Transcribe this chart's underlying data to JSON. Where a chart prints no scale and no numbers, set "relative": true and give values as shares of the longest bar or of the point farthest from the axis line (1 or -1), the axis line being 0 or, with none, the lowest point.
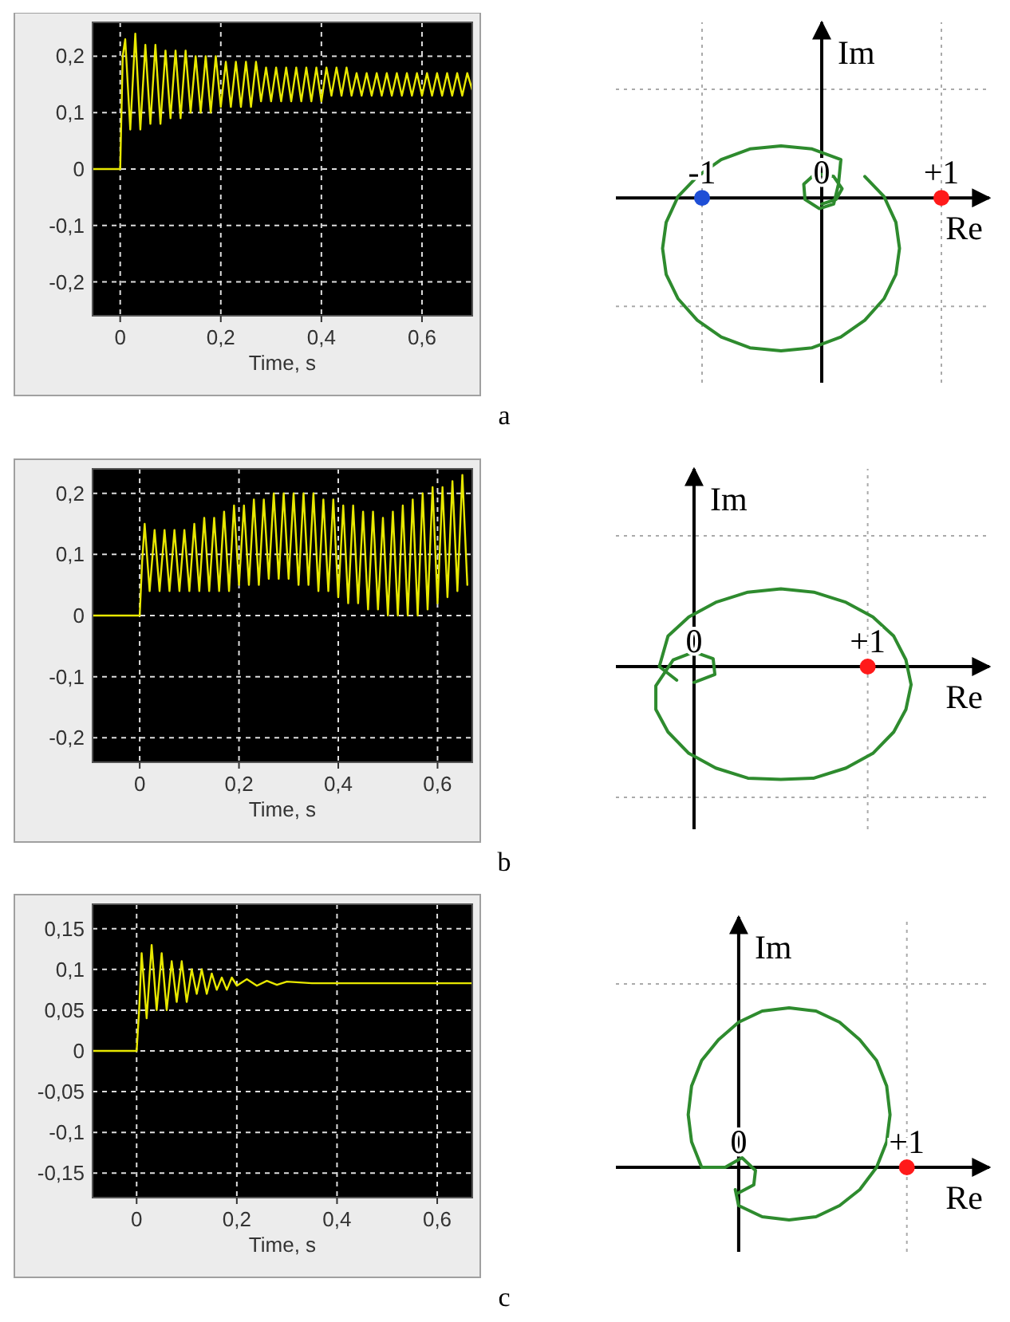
{
  "chart_data": [
    {
      "type": "line",
      "xlabel": "Time, s",
      "annotations": [
        "a"
      ],
      "xlim": [
        -0.055,
        0.7
      ],
      "ylim": [
        -0.26,
        0.26
      ],
      "xticks": [
        {
          "value": 0,
          "label": "0"
        },
        {
          "value": 0.2,
          "label": "0,2"
        },
        {
          "value": 0.4,
          "label": "0,4"
        },
        {
          "value": 0.6,
          "label": "0,6"
        }
      ],
      "yticks": [
        {
          "value": -0.2,
          "label": "-0,2"
        },
        {
          "value": -0.1,
          "label": "-0,1"
        },
        {
          "value": 0,
          "label": "0"
        },
        {
          "value": 0.1,
          "label": "0,1"
        },
        {
          "value": 0.2,
          "label": "0,2"
        }
      ],
      "grid": true,
      "series": [
        {
          "color": "#e8e800",
          "x": [
            -0.055,
            0,
            0.005,
            0.01,
            0.02,
            0.03,
            0.04,
            0.05,
            0.06,
            0.07,
            0.08,
            0.09,
            0.1,
            0.11,
            0.12,
            0.13,
            0.14,
            0.15,
            0.16,
            0.17,
            0.18,
            0.19,
            0.2,
            0.21,
            0.22,
            0.23,
            0.24,
            0.25,
            0.26,
            0.27,
            0.28,
            0.29,
            0.3,
            0.31,
            0.32,
            0.33,
            0.34,
            0.35,
            0.36,
            0.37,
            0.38,
            0.39,
            0.4,
            0.41,
            0.42,
            0.43,
            0.44,
            0.45,
            0.46,
            0.47,
            0.48,
            0.49,
            0.5,
            0.51,
            0.52,
            0.53,
            0.54,
            0.55,
            0.56,
            0.57,
            0.58,
            0.59,
            0.6,
            0.61,
            0.62,
            0.63,
            0.64,
            0.65,
            0.66,
            0.67,
            0.68,
            0.69,
            0.7
          ],
          "values": [
            0,
            0,
            0.2,
            0.23,
            0.07,
            0.24,
            0.07,
            0.22,
            0.08,
            0.22,
            0.08,
            0.21,
            0.09,
            0.21,
            0.09,
            0.21,
            0.1,
            0.2,
            0.1,
            0.2,
            0.1,
            0.2,
            0.11,
            0.19,
            0.11,
            0.19,
            0.11,
            0.19,
            0.11,
            0.19,
            0.12,
            0.18,
            0.12,
            0.18,
            0.12,
            0.18,
            0.12,
            0.18,
            0.12,
            0.18,
            0.12,
            0.18,
            0.12,
            0.18,
            0.13,
            0.18,
            0.13,
            0.18,
            0.13,
            0.17,
            0.13,
            0.17,
            0.13,
            0.17,
            0.13,
            0.17,
            0.13,
            0.17,
            0.13,
            0.17,
            0.13,
            0.17,
            0.13,
            0.17,
            0.13,
            0.17,
            0.13,
            0.17,
            0.13,
            0.17,
            0.13,
            0.17,
            0.14
          ]
        }
      ]
    },
    {
      "type": "line",
      "xlabel": "Re",
      "ylabel": "Im",
      "relative": true,
      "xlim": [
        -1.72,
        1.4
      ],
      "xticks": [
        {
          "value": -1,
          "label": "-1"
        },
        {
          "value": 0,
          "label": "0"
        },
        {
          "value": 1,
          "label": "+1"
        }
      ],
      "tick_labels": "x",
      "ref_lines": [
        {
          "axis": "y",
          "value": 0.71,
          "color": "#aaaaaa",
          "line_style": "dotted"
        },
        {
          "axis": "y",
          "value": -0.71,
          "color": "#aaaaaa",
          "line_style": "dotted"
        },
        {
          "axis": "x",
          "value": -1,
          "color": "#aaaaaa",
          "line_style": "dotted"
        },
        {
          "axis": "x",
          "value": 1,
          "color": "#aaaaaa",
          "line_style": "dotted"
        }
      ],
      "series": [
        {
          "color": "#2e8b2e",
          "x": [
            0,
            0.12,
            0.17,
            0.1,
            -0.05,
            -0.15,
            -0.14,
            -0.02,
            0.1,
            0.14,
            0.16,
            -0.08,
            -0.34,
            -0.6,
            -0.84,
            -1.04,
            -1.2,
            -1.3,
            -1.33,
            -1.3,
            -1.2,
            -1.04,
            -0.84,
            -0.6,
            -0.34,
            -0.08,
            0.16,
            0.36,
            0.52,
            0.62,
            0.65,
            0.62,
            0.52,
            0.36
          ],
          "values": [
            -0.04,
            -0.01,
            0.06,
            0.14,
            0.16,
            0.09,
            -0.01,
            -0.07,
            -0.04,
            0.09,
            0.25,
            0.32,
            0.34,
            0.32,
            0.25,
            0.14,
            0.01,
            -0.16,
            -0.33,
            -0.5,
            -0.66,
            -0.8,
            -0.91,
            -0.98,
            -1,
            -0.98,
            -0.91,
            -0.8,
            -0.66,
            -0.5,
            -0.33,
            -0.16,
            0.01,
            0.14
          ]
        },
        {
          "type": "scatter",
          "marker": "circle",
          "color": "#1f4fd6",
          "x": [
            -1
          ],
          "values": [
            0
          ]
        },
        {
          "type": "scatter",
          "marker": "circle",
          "color": "#ff1a1a",
          "x": [
            1
          ],
          "values": [
            0
          ]
        }
      ]
    },
    {
      "type": "line",
      "xlabel": "Time, s",
      "annotations": [
        "b"
      ],
      "xlim": [
        -0.095,
        0.67
      ],
      "ylim": [
        -0.24,
        0.24
      ],
      "xticks": [
        {
          "value": 0,
          "label": "0"
        },
        {
          "value": 0.2,
          "label": "0,2"
        },
        {
          "value": 0.4,
          "label": "0,4"
        },
        {
          "value": 0.6,
          "label": "0,6"
        }
      ],
      "yticks": [
        {
          "value": -0.2,
          "label": "-0,2"
        },
        {
          "value": -0.1,
          "label": "-0,1"
        },
        {
          "value": 0,
          "label": "0"
        },
        {
          "value": 0.1,
          "label": "0,1"
        },
        {
          "value": 0.2,
          "label": "0,2"
        }
      ],
      "grid": true,
      "series": [
        {
          "color": "#e8e800",
          "x": [
            -0.095,
            0,
            0.005,
            0.01,
            0.02,
            0.03,
            0.04,
            0.05,
            0.06,
            0.07,
            0.08,
            0.09,
            0.1,
            0.11,
            0.12,
            0.13,
            0.14,
            0.15,
            0.16,
            0.17,
            0.18,
            0.19,
            0.2,
            0.21,
            0.22,
            0.23,
            0.24,
            0.25,
            0.26,
            0.27,
            0.28,
            0.29,
            0.3,
            0.31,
            0.32,
            0.33,
            0.34,
            0.35,
            0.36,
            0.37,
            0.38,
            0.39,
            0.4,
            0.41,
            0.42,
            0.43,
            0.44,
            0.45,
            0.46,
            0.47,
            0.48,
            0.49,
            0.5,
            0.51,
            0.52,
            0.53,
            0.54,
            0.55,
            0.56,
            0.57,
            0.58,
            0.59,
            0.6,
            0.61,
            0.62,
            0.63,
            0.64,
            0.65,
            0.66
          ],
          "values": [
            0,
            0,
            0.09,
            0.15,
            0.04,
            0.14,
            0.04,
            0.14,
            0.04,
            0.14,
            0.04,
            0.14,
            0.04,
            0.15,
            0.04,
            0.16,
            0.04,
            0.16,
            0.04,
            0.17,
            0.04,
            0.18,
            0.05,
            0.18,
            0.05,
            0.19,
            0.05,
            0.19,
            0.06,
            0.2,
            0.06,
            0.2,
            0.06,
            0.2,
            0.05,
            0.2,
            0.05,
            0.2,
            0.04,
            0.19,
            0.04,
            0.19,
            0.03,
            0.18,
            0.02,
            0.18,
            0.02,
            0.17,
            0.01,
            0.17,
            0.01,
            0.16,
            0,
            0.17,
            0,
            0.18,
            0,
            0.19,
            0,
            0.2,
            0.01,
            0.21,
            0.02,
            0.21,
            0.03,
            0.22,
            0.04,
            0.23,
            0.05
          ]
        }
      ]
    },
    {
      "type": "line",
      "xlabel": "Re",
      "ylabel": "Im",
      "relative": true,
      "xlim": [
        -0.45,
        1.7
      ],
      "xticks": [
        {
          "value": 0,
          "label": "0"
        },
        {
          "value": 1,
          "label": "+1"
        }
      ],
      "tick_labels": "x",
      "ref_lines": [
        {
          "axis": "y",
          "value": 1.16,
          "color": "#aaaaaa",
          "line_style": "dotted"
        },
        {
          "axis": "y",
          "value": -1.16,
          "color": "#aaaaaa",
          "line_style": "dotted"
        },
        {
          "axis": "x",
          "value": 1,
          "color": "#aaaaaa",
          "line_style": "dotted"
        }
      ],
      "series": [
        {
          "color": "#2e8b2e",
          "x": [
            0,
            0.12,
            0.11,
            0,
            -0.12,
            -0.22,
            -0.22,
            -0.15,
            -0.03,
            0.125,
            0.31,
            0.5,
            0.69,
            0.875,
            1.03,
            1.15,
            1.22,
            1.25,
            1.22,
            1.15,
            1.03,
            0.875,
            0.69,
            0.5,
            0.31,
            0.125,
            -0.03,
            -0.15,
            -0.2,
            -0.1
          ],
          "values": [
            -0.14,
            -0.07,
            0.07,
            0.13,
            0.06,
            -0.17,
            -0.38,
            -0.58,
            -0.77,
            -0.9,
            -0.99,
            -1,
            -0.99,
            -0.9,
            -0.77,
            -0.58,
            -0.38,
            -0.16,
            0.06,
            0.27,
            0.44,
            0.57,
            0.66,
            0.69,
            0.66,
            0.57,
            0.44,
            0.27,
            0,
            -0.12
          ]
        },
        {
          "type": "scatter",
          "marker": "circle",
          "color": "#ff1a1a",
          "x": [
            1
          ],
          "values": [
            0
          ]
        }
      ]
    },
    {
      "type": "line",
      "xlabel": "Time, s",
      "annotations": [
        "c"
      ],
      "xlim": [
        -0.088,
        0.67
      ],
      "ylim": [
        -0.18,
        0.18
      ],
      "xticks": [
        {
          "value": 0,
          "label": "0"
        },
        {
          "value": 0.2,
          "label": "0,2"
        },
        {
          "value": 0.4,
          "label": "0,4"
        },
        {
          "value": 0.6,
          "label": "0,6"
        }
      ],
      "yticks": [
        {
          "value": -0.15,
          "label": "-0,15"
        },
        {
          "value": -0.1,
          "label": "-0,1"
        },
        {
          "value": -0.05,
          "label": "-0,05"
        },
        {
          "value": 0,
          "label": "0"
        },
        {
          "value": 0.05,
          "label": "0,05"
        },
        {
          "value": 0.1,
          "label": "0,1"
        },
        {
          "value": 0.15,
          "label": "0,15"
        }
      ],
      "grid": true,
      "series": [
        {
          "color": "#e8e800",
          "x": [
            -0.088,
            0,
            0.005,
            0.01,
            0.02,
            0.03,
            0.04,
            0.05,
            0.06,
            0.07,
            0.08,
            0.09,
            0.1,
            0.11,
            0.12,
            0.13,
            0.14,
            0.15,
            0.16,
            0.17,
            0.18,
            0.19,
            0.2,
            0.22,
            0.24,
            0.26,
            0.28,
            0.3,
            0.35,
            0.67
          ],
          "values": [
            0,
            0,
            0.05,
            0.12,
            0.04,
            0.13,
            0.05,
            0.12,
            0.05,
            0.11,
            0.06,
            0.11,
            0.06,
            0.1,
            0.07,
            0.1,
            0.07,
            0.095,
            0.075,
            0.09,
            0.075,
            0.09,
            0.08,
            0.088,
            0.08,
            0.086,
            0.081,
            0.085,
            0.083,
            0.083
          ]
        }
      ]
    },
    {
      "type": "line",
      "xlabel": "Re",
      "ylabel": "Im",
      "relative": true,
      "xlim": [
        -0.73,
        1.49
      ],
      "xticks": [
        {
          "value": 0,
          "label": "0"
        },
        {
          "value": 1,
          "label": "+1"
        }
      ],
      "tick_labels": "x",
      "ref_lines": [
        {
          "axis": "y",
          "value": 1.15,
          "color": "#aaaaaa",
          "line_style": "dotted"
        },
        {
          "axis": "x",
          "value": 1,
          "color": "#aaaaaa",
          "line_style": "dotted"
        }
      ],
      "series": [
        {
          "color": "#2e8b2e",
          "x": [
            0,
            0.09,
            0.1,
            0.02,
            -0.08,
            -0.22,
            -0.28,
            -0.3,
            -0.28,
            -0.22,
            -0.12,
            0,
            0.14,
            0.3,
            0.46,
            0.6,
            0.72,
            0.82,
            0.88,
            0.9,
            0.88,
            0.82,
            0.72,
            0.6,
            0.46,
            0.3,
            0.14,
            0,
            -0.02
          ],
          "values": [
            -0.16,
            -0.11,
            -0.02,
            0.06,
            0,
            0,
            0.16,
            0.33,
            0.51,
            0.67,
            0.8,
            0.91,
            0.98,
            1,
            0.98,
            0.91,
            0.8,
            0.67,
            0.51,
            0.33,
            0.16,
            0,
            -0.14,
            -0.24,
            -0.31,
            -0.33,
            -0.31,
            -0.24,
            -0.14
          ]
        },
        {
          "type": "scatter",
          "marker": "circle",
          "color": "#ff1a1a",
          "x": [
            1
          ],
          "values": [
            0
          ]
        }
      ]
    }
  ]
}
